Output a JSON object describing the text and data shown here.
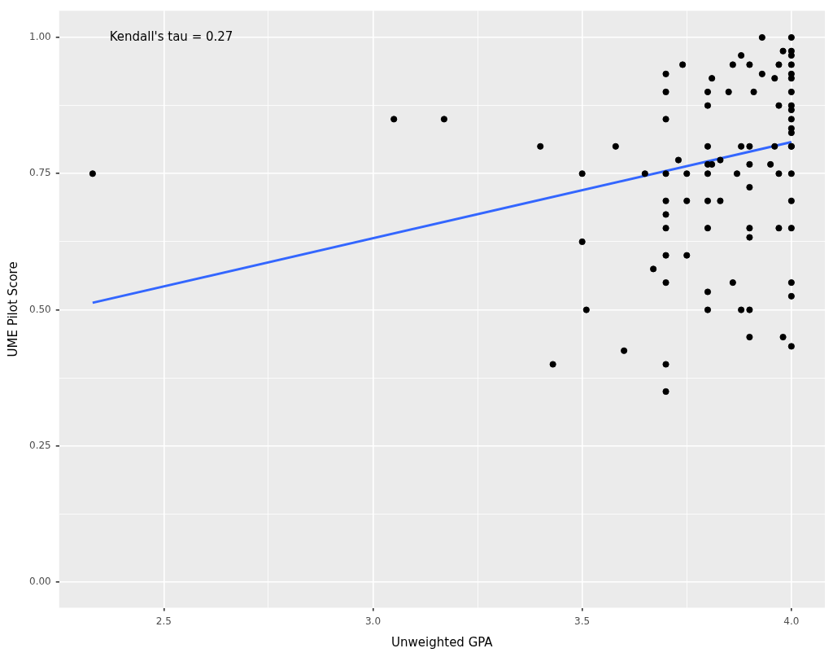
{
  "chart_data": {
    "type": "scatter",
    "xlabel": "Unweighted GPA",
    "ylabel": "UME Pilot Score",
    "annotations": [
      "Kendall's tau = 0.27"
    ],
    "xlim": [
      2.25,
      4.08
    ],
    "ylim": [
      -0.047,
      1.049
    ],
    "xticks": [
      {
        "value": 2.5,
        "label": "2.5"
      },
      {
        "value": 2.75,
        "label": null
      },
      {
        "value": 3,
        "label": "3.0"
      },
      {
        "value": 3.25,
        "label": null
      },
      {
        "value": 3.5,
        "label": "3.5"
      },
      {
        "value": 3.75,
        "label": null
      },
      {
        "value": 4,
        "label": "4.0"
      }
    ],
    "yticks": [
      {
        "value": 0,
        "label": "0.00"
      },
      {
        "value": 0.125,
        "label": null
      },
      {
        "value": 0.25,
        "label": "0.25"
      },
      {
        "value": 0.375,
        "label": null
      },
      {
        "value": 0.5,
        "label": "0.50"
      },
      {
        "value": 0.625,
        "label": null
      },
      {
        "value": 0.75,
        "label": "0.75"
      },
      {
        "value": 0.875,
        "label": null
      },
      {
        "value": 1,
        "label": "1.00"
      }
    ],
    "grid": true,
    "legend": false,
    "series": [
      {
        "marker": "circle",
        "color": "#000000",
        "x": [
          2.33,
          3.05,
          3.17,
          3.4,
          3.43,
          3.5,
          3.5,
          3.51,
          3.58,
          3.6,
          3.65,
          3.67,
          3.7,
          3.7,
          3.7,
          3.7,
          3.7,
          3.7,
          3.7,
          3.7,
          3.7,
          3.7,
          3.7,
          3.73,
          3.74,
          3.75,
          3.75,
          3.75,
          3.8,
          3.8,
          3.8,
          3.8,
          3.8,
          3.8,
          3.8,
          3.8,
          3.8,
          3.81,
          3.81,
          3.83,
          3.83,
          3.85,
          3.86,
          3.86,
          3.87,
          3.88,
          3.88,
          3.88,
          3.9,
          3.9,
          3.9,
          3.9,
          3.9,
          3.9,
          3.9,
          3.9,
          3.91,
          3.93,
          3.93,
          3.95,
          3.96,
          3.96,
          3.97,
          3.97,
          3.97,
          3.97,
          3.98,
          3.98,
          4,
          4,
          4,
          4,
          4,
          4,
          4,
          4,
          4,
          4,
          4,
          4,
          4,
          4,
          4,
          4,
          4,
          4,
          4,
          4
        ],
        "values": [
          0.75,
          0.85,
          0.85,
          0.8,
          0.4,
          0.75,
          0.625,
          0.5,
          0.8,
          0.425,
          0.75,
          0.575,
          0.933,
          0.9,
          0.85,
          0.75,
          0.7,
          0.675,
          0.65,
          0.6,
          0.55,
          0.4,
          0.35,
          0.775,
          0.95,
          0.7,
          0.75,
          0.6,
          0.9,
          0.875,
          0.8,
          0.767,
          0.75,
          0.7,
          0.65,
          0.533,
          0.5,
          0.925,
          0.767,
          0.775,
          0.7,
          0.9,
          0.95,
          0.55,
          0.75,
          0.967,
          0.8,
          0.5,
          0.95,
          0.8,
          0.767,
          0.725,
          0.65,
          0.633,
          0.5,
          0.45,
          0.9,
          1,
          0.933,
          0.767,
          0.925,
          0.8,
          0.95,
          0.75,
          0.65,
          0.875,
          0.975,
          0.45,
          1,
          0.975,
          0.967,
          0.95,
          0.933,
          0.925,
          0.9,
          0.875,
          0.867,
          0.85,
          0.833,
          0.825,
          0.8,
          0.75,
          0.7,
          0.65,
          0.55,
          0.525,
          0.433,
          0.8
        ]
      },
      {
        "type": "line",
        "marker": "none",
        "color": "#3366ff",
        "x": [
          2.33,
          4
        ],
        "values": [
          0.513,
          0.808
        ]
      }
    ]
  }
}
